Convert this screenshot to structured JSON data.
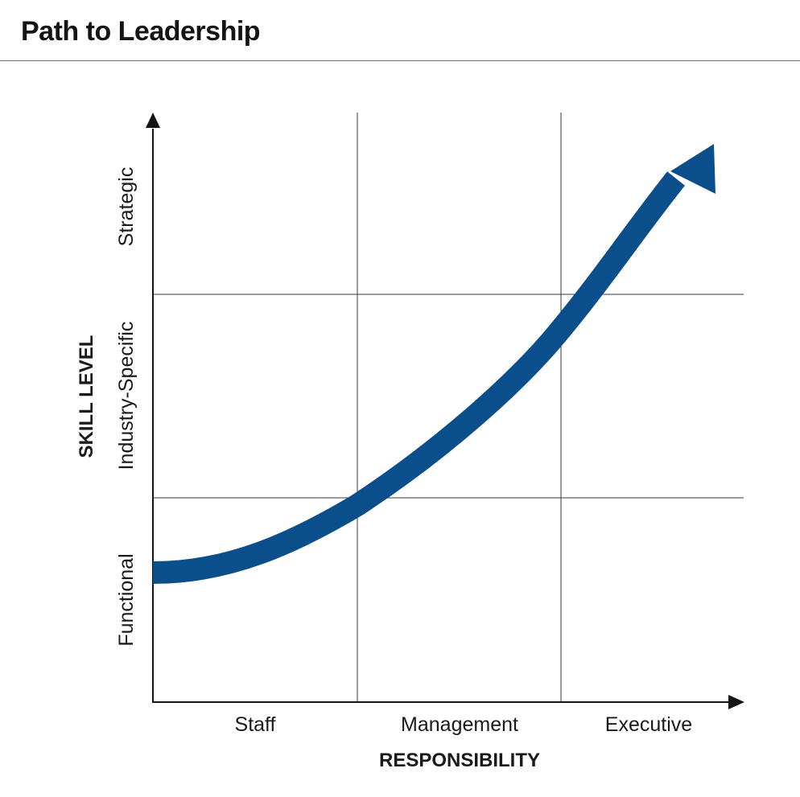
{
  "header": {
    "title": "Path to Leadership"
  },
  "diagram": {
    "y_axis": {
      "title": "SKILL LEVEL",
      "levels": [
        "Functional",
        "Industry-Specific",
        "Strategic"
      ]
    },
    "x_axis": {
      "title": "RESPONSIBILITY",
      "levels": [
        "Staff",
        "Management",
        "Executive"
      ]
    },
    "grid": "3x3",
    "path_arrow": {
      "from": [
        "Staff",
        "Functional"
      ],
      "to": [
        "Executive",
        "Strategic"
      ],
      "shape": "upward curve"
    }
  },
  "colors": {
    "arrow": "#0a4f8c",
    "axis": "#141414",
    "grid": "#3a3a3a",
    "text": "#1a1a1a"
  }
}
